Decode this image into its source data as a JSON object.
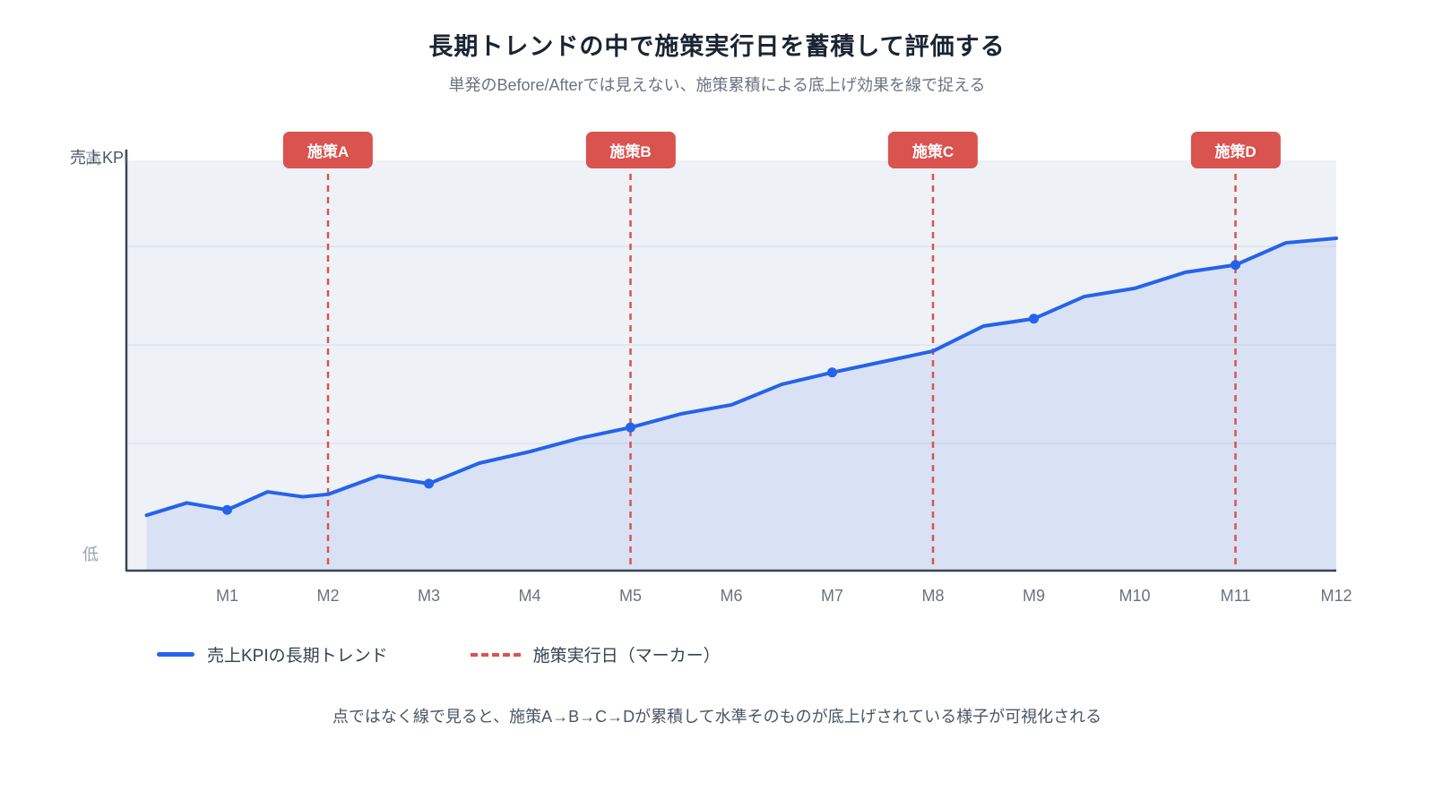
{
  "header": {
    "title": "長期トレンドの中で施策実行日を蓄積して評価する",
    "subtitle": "単発のBefore/Afterでは見えない、施策累積による底上げ効果を線で捉える"
  },
  "chart_data": {
    "type": "line",
    "title": "長期トレンドの中で施策実行日を蓄積して評価する",
    "y_axis_title": "売上KPI",
    "y_axis_high_label": "高",
    "y_axis_low_label": "低",
    "x_tick_labels": [
      "M1",
      "M2",
      "M3",
      "M4",
      "M5",
      "M6",
      "M7",
      "M8",
      "M9",
      "M10",
      "M11",
      "M12"
    ],
    "x_range": [
      0,
      12
    ],
    "y_range": [
      0,
      100
    ],
    "grid": true,
    "gridline_values": [
      31,
      55,
      79
    ],
    "legend_position": "bottom",
    "series": [
      {
        "name": "売上KPIの長期トレンド",
        "color": "#2563eb",
        "x": [
          0.2,
          0.6,
          1.0,
          1.4,
          1.75,
          2.0,
          2.5,
          3.0,
          3.5,
          4.0,
          4.5,
          5.0,
          5.5,
          6.0,
          6.5,
          7.0,
          7.5,
          8.0,
          8.5,
          9.0,
          9.5,
          10.0,
          10.5,
          11.0,
          11.5,
          12.0
        ],
        "values": [
          13.5,
          16.5,
          14.8,
          19.2,
          18.0,
          18.6,
          23.1,
          21.2,
          26.2,
          29.0,
          32.3,
          34.9,
          38.2,
          40.4,
          45.4,
          48.3,
          50.9,
          53.5,
          59.6,
          61.4,
          66.8,
          68.8,
          72.7,
          74.5,
          79.9,
          81.0
        ],
        "marker_months": [
          1,
          3,
          5,
          7,
          9,
          11
        ]
      }
    ],
    "interventions": [
      {
        "label": "施策A",
        "month": 2
      },
      {
        "label": "施策B",
        "month": 5
      },
      {
        "label": "施策C",
        "month": 8
      },
      {
        "label": "施策D",
        "month": 11
      }
    ],
    "colors": {
      "line": "#2563eb",
      "area_fill": "rgba(37,99,235,0.10)",
      "intervention": "#d9534f",
      "plot_bg": "#eef1f6",
      "grid": "#dce3ed",
      "axis": "#3b4452",
      "tick_label": "#6b7280"
    }
  },
  "legend": {
    "items": [
      {
        "label": "売上KPIの長期トレンド",
        "type": "line",
        "color": "#2563eb"
      },
      {
        "label": "施策実行日（マーカー）",
        "type": "dashed",
        "color": "#d9534f"
      }
    ]
  },
  "footer": {
    "note": "点ではなく線で見ると、施策A→B→C→Dが累積して水準そのものが底上げされている様子が可視化される"
  }
}
